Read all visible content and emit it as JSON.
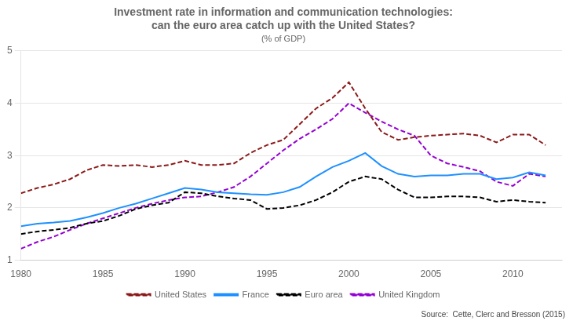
{
  "chart_data": {
    "type": "line",
    "title": [
      "Investment rate in information and communication technologies:",
      "can the euro area catch up with the United States?"
    ],
    "subtitle": "(% of GDP)",
    "annotations": [
      "Source:  Cette, Clerc and Bresson (2015)"
    ],
    "x": [
      1980,
      1981,
      1982,
      1983,
      1984,
      1985,
      1986,
      1987,
      1988,
      1989,
      1990,
      1991,
      1992,
      1993,
      1994,
      1995,
      1996,
      1997,
      1998,
      1999,
      2000,
      2001,
      2002,
      2003,
      2004,
      2005,
      2006,
      2007,
      2008,
      2009,
      2010,
      2011,
      2012
    ],
    "xlim": [
      1980,
      2013
    ],
    "xticks": [
      1980,
      1985,
      1990,
      1995,
      2000,
      2005,
      2010
    ],
    "ylim": [
      1,
      5
    ],
    "yticks": [
      1,
      2,
      3,
      4,
      5
    ],
    "grid": "y",
    "legend": "bottom",
    "series": [
      {
        "name": "United States",
        "color": "#8B1A1A",
        "line_style": "dashed",
        "values": [
          2.28,
          2.38,
          2.45,
          2.55,
          2.72,
          2.82,
          2.8,
          2.82,
          2.78,
          2.82,
          2.9,
          2.82,
          2.82,
          2.85,
          3.05,
          3.2,
          3.3,
          3.6,
          3.9,
          4.1,
          4.4,
          3.9,
          3.45,
          3.3,
          3.35,
          3.38,
          3.4,
          3.42,
          3.38,
          3.25,
          3.4,
          3.4,
          3.2
        ]
      },
      {
        "name": "France",
        "color": "#1E90FF",
        "line_style": "solid",
        "values": [
          1.65,
          1.7,
          1.72,
          1.75,
          1.82,
          1.9,
          2.0,
          2.08,
          2.18,
          2.28,
          2.38,
          2.35,
          2.3,
          2.28,
          2.26,
          2.25,
          2.3,
          2.4,
          2.6,
          2.78,
          2.9,
          3.05,
          2.8,
          2.65,
          2.6,
          2.62,
          2.62,
          2.65,
          2.65,
          2.55,
          2.58,
          2.68,
          2.62
        ]
      },
      {
        "name": "Euro area",
        "color": "#000000",
        "line_style": "dashed",
        "values": [
          1.5,
          1.55,
          1.58,
          1.62,
          1.7,
          1.75,
          1.85,
          1.98,
          2.05,
          2.1,
          2.3,
          2.28,
          2.22,
          2.18,
          2.15,
          1.98,
          2.0,
          2.05,
          2.15,
          2.3,
          2.5,
          2.6,
          2.55,
          2.35,
          2.2,
          2.2,
          2.22,
          2.22,
          2.2,
          2.12,
          2.15,
          2.12,
          2.1
        ]
      },
      {
        "name": "United Kingdom",
        "color": "#9400D3",
        "line_style": "dashed",
        "values": [
          1.22,
          1.35,
          1.45,
          1.58,
          1.7,
          1.8,
          1.9,
          2.0,
          2.08,
          2.15,
          2.2,
          2.22,
          2.3,
          2.4,
          2.6,
          2.85,
          3.1,
          3.32,
          3.5,
          3.7,
          4.0,
          3.82,
          3.65,
          3.5,
          3.38,
          3.0,
          2.85,
          2.78,
          2.7,
          2.5,
          2.42,
          2.65,
          2.6
        ]
      }
    ]
  }
}
